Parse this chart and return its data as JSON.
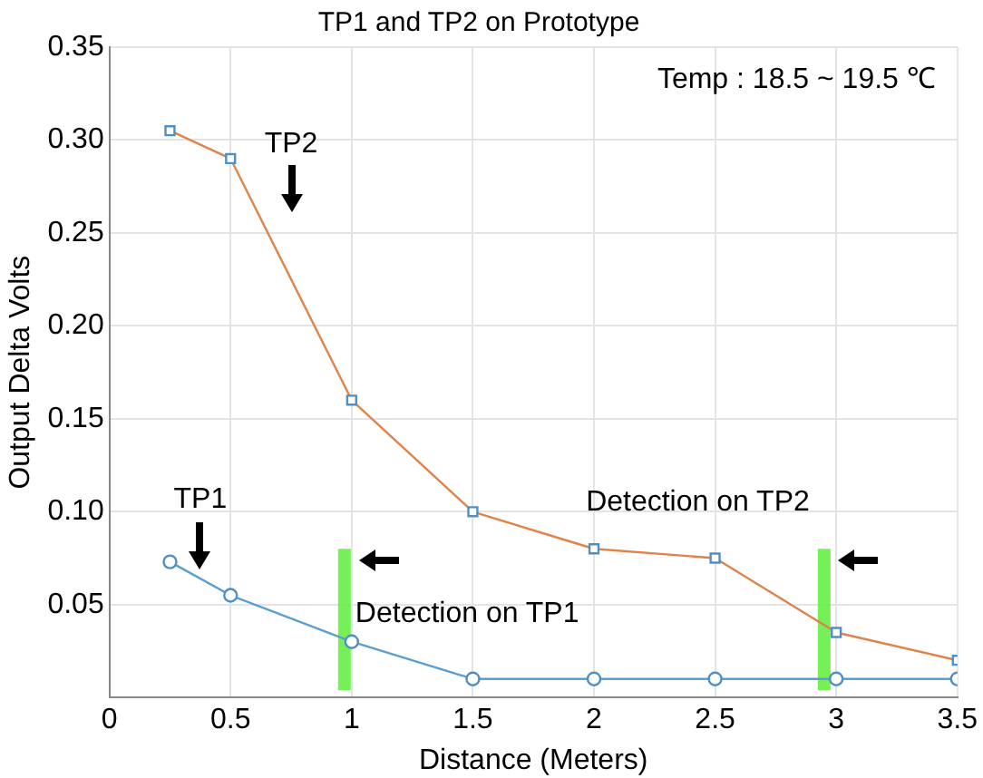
{
  "chart_data": {
    "type": "line",
    "title": "TP1 and TP2 on Prototype",
    "xlabel": "Distance (Meters)",
    "ylabel": "Output Delta Volts",
    "x": [
      0.25,
      0.5,
      1,
      1.5,
      2,
      2.5,
      3,
      3.5
    ],
    "series": [
      {
        "name": "TP1",
        "color": "#5a9fd0",
        "marker": "circle",
        "values": [
          0.073,
          0.055,
          0.03,
          0.01,
          0.01,
          0.01,
          0.01,
          0.01
        ]
      },
      {
        "name": "TP2",
        "color": "#e0824a",
        "marker": "square",
        "values": [
          0.305,
          0.29,
          0.16,
          0.1,
          0.08,
          0.075,
          0.035,
          0.02
        ]
      }
    ],
    "xlim": [
      0,
      3.5
    ],
    "xticks": [
      0,
      0.5,
      1,
      1.5,
      2,
      2.5,
      3,
      3.5
    ],
    "ylim": [
      0,
      0.35
    ],
    "yticks": [
      {
        "value": 0,
        "label": null
      },
      0.05,
      {
        "value": 0.1,
        "label": "0.10"
      },
      0.15,
      {
        "value": 0.2,
        "label": "0.20"
      },
      0.25,
      {
        "value": 0.3,
        "label": "0.30"
      },
      0.35
    ],
    "grid": true,
    "legend": false,
    "line_style": "solid",
    "ref_lines": [
      {
        "axis": "x",
        "value": 0.97,
        "label": "Detection on TP1",
        "color": "#66ee44"
      },
      {
        "axis": "x",
        "value": 2.95,
        "label": "Detection on TP2",
        "color": "#66ee44"
      }
    ],
    "annotations": [
      "Temp : 18.5 ~ 19.5 ℃"
    ]
  }
}
